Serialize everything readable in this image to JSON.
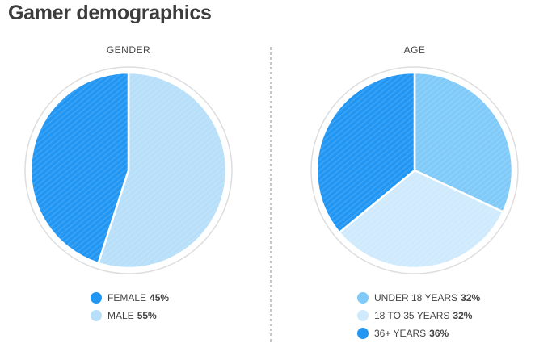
{
  "page": {
    "title": "Gamer demographics"
  },
  "colors": {
    "dark_blue": "#2196f3",
    "mid_blue": "#7fcaf8",
    "light_blue": "#b7dff9",
    "pale_blue": "#cfeafc",
    "divider": "#c7c7c7",
    "ring": "#dddddd"
  },
  "chart_data": [
    {
      "type": "pie",
      "title": "GENDER",
      "start": "12 o'clock, clockwise",
      "slices": [
        {
          "label": "FEMALE",
          "value": 45,
          "display": "45%",
          "color": "#2196f3",
          "order": 1
        },
        {
          "label": "MALE",
          "value": 55,
          "display": "55%",
          "color": "#b7dff9",
          "order": 0
        }
      ]
    },
    {
      "type": "pie",
      "title": "AGE",
      "start": "12 o'clock, clockwise",
      "slices": [
        {
          "label": "UNDER 18 YEARS",
          "value": 32,
          "display": "32%",
          "color": "#7fcaf8",
          "order": 0
        },
        {
          "label": "18 TO 35 YEARS",
          "value": 32,
          "display": "32%",
          "color": "#cfeafc",
          "order": 1
        },
        {
          "label": "36+ YEARS",
          "value": 36,
          "display": "36%",
          "color": "#2196f3",
          "order": 2
        }
      ]
    }
  ]
}
